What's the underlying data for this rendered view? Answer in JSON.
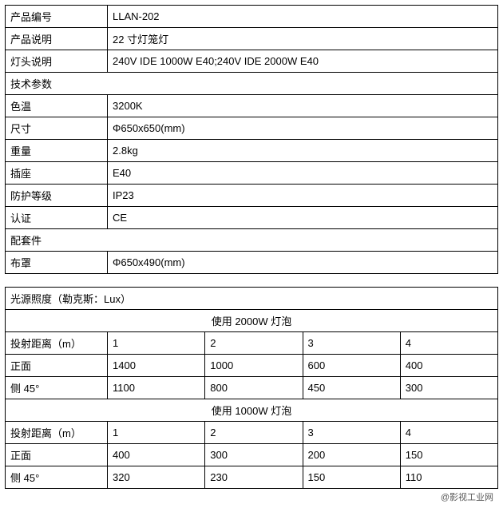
{
  "spec": {
    "rows": [
      {
        "label": "产品编号",
        "value": "LLAN-202"
      },
      {
        "label": "产品说明",
        "value": "22 寸灯笼灯"
      },
      {
        "label": "灯头说明",
        "value": "240V IDE 1000W E40;240V IDE 2000W E40"
      }
    ],
    "tech_header": "技术参数",
    "tech_rows": [
      {
        "label": "色温",
        "value": "3200K"
      },
      {
        "label": "尺寸",
        "value": "Φ650x650(mm)"
      },
      {
        "label": "重量",
        "value": "2.8kg"
      },
      {
        "label": "插座",
        "value": "E40"
      },
      {
        "label": "防护等级",
        "value": "IP23"
      },
      {
        "label": "认证",
        "value": "CE"
      }
    ],
    "accessory_header": "配套件",
    "accessory_rows": [
      {
        "label": "布罩",
        "value": "Φ650x490(mm)"
      }
    ]
  },
  "lux": {
    "header": "光源照度（勒克斯：Lux）",
    "bulb_2000_header": "使用 2000W 灯泡",
    "bulb_1000_header": "使用 1000W 灯泡",
    "distance_label": "投射距离（m）",
    "distances": [
      "1",
      "2",
      "3",
      "4"
    ],
    "front_label": "正面",
    "side_label": "侧 45°",
    "bulb_2000": {
      "front": [
        "1400",
        "1000",
        "600",
        "400"
      ],
      "side": [
        "1100",
        "800",
        "450",
        "300"
      ]
    },
    "bulb_1000": {
      "front": [
        "400",
        "300",
        "200",
        "150"
      ],
      "side": [
        "320",
        "230",
        "150",
        "110"
      ]
    }
  },
  "footer": "@影视工业网"
}
